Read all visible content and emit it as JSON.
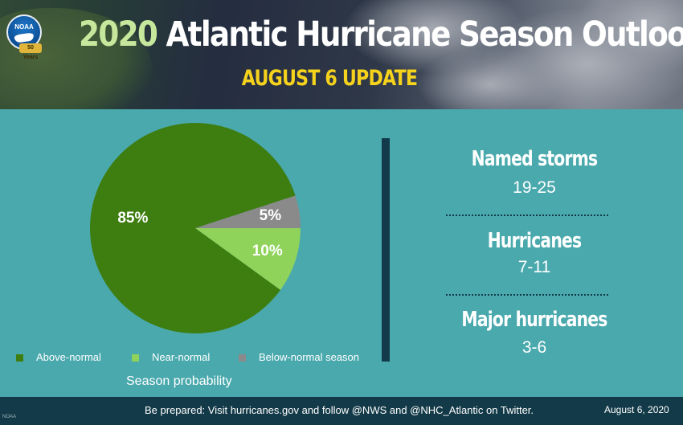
{
  "header": {
    "logo_text": "NOAA",
    "logo_years": "50 Years",
    "title_year": "2020",
    "title_rest": "Atlantic Hurricane Season Outlook",
    "subtitle": "AUGUST 6 UPDATE"
  },
  "chart_data": {
    "type": "pie",
    "title": "",
    "categories": [
      "Above-normal",
      "Near-normal",
      "Below-normal season"
    ],
    "values": [
      85,
      10,
      5
    ],
    "labels": [
      "85%",
      "10%",
      "5%"
    ],
    "colors": [
      "#3e7e10",
      "#8fd35a",
      "#8a8a8a"
    ],
    "caption": "Season probability",
    "legend_position": "bottom"
  },
  "stats": [
    {
      "label": "Named storms",
      "value": "19-25"
    },
    {
      "label": "Hurricanes",
      "value": "7-11"
    },
    {
      "label": "Major hurricanes",
      "value": "3-6"
    }
  ],
  "footer": {
    "message": "Be prepared: Visit hurricanes.gov and follow @NWS and @NHC_Atlantic on Twitter.",
    "date": "August 6, 2020",
    "credit": "NOAA"
  },
  "colors": {
    "background": "#4aa9ad",
    "footer": "#133a48",
    "subtitle": "#f5d21c",
    "title_year": "#c6e89c"
  }
}
